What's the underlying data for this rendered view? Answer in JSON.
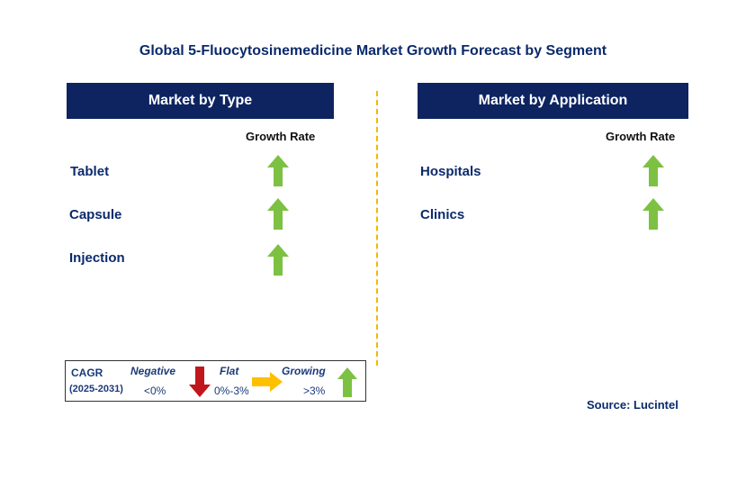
{
  "title": "Global 5-Fluocytosinemedicine Market Growth Forecast by Segment",
  "left_panel": {
    "header": "Market by Type",
    "growth_label": "Growth Rate",
    "segments": [
      {
        "label": "Tablet",
        "trend": "growing"
      },
      {
        "label": "Capsule",
        "trend": "growing"
      },
      {
        "label": "Injection",
        "trend": "growing"
      }
    ]
  },
  "right_panel": {
    "header": "Market by Application",
    "growth_label": "Growth Rate",
    "segments": [
      {
        "label": "Hospitals",
        "trend": "growing"
      },
      {
        "label": "Clinics",
        "trend": "growing"
      }
    ]
  },
  "legend": {
    "cagr_label": "CAGR",
    "period": "(2025-2031)",
    "negative_label": "Negative",
    "negative_range": "<0%",
    "flat_label": "Flat",
    "flat_range": "0%-3%",
    "growing_label": "Growing",
    "growing_range": ">3%"
  },
  "source": "Source: Lucintel",
  "colors": {
    "header_bg": "#0d2460",
    "title_text": "#0b2a6b",
    "growing_arrow": "#7dc142",
    "negative_arrow": "#c0161c",
    "flat_arrow": "#ffc000",
    "divider": "#f5b800"
  }
}
